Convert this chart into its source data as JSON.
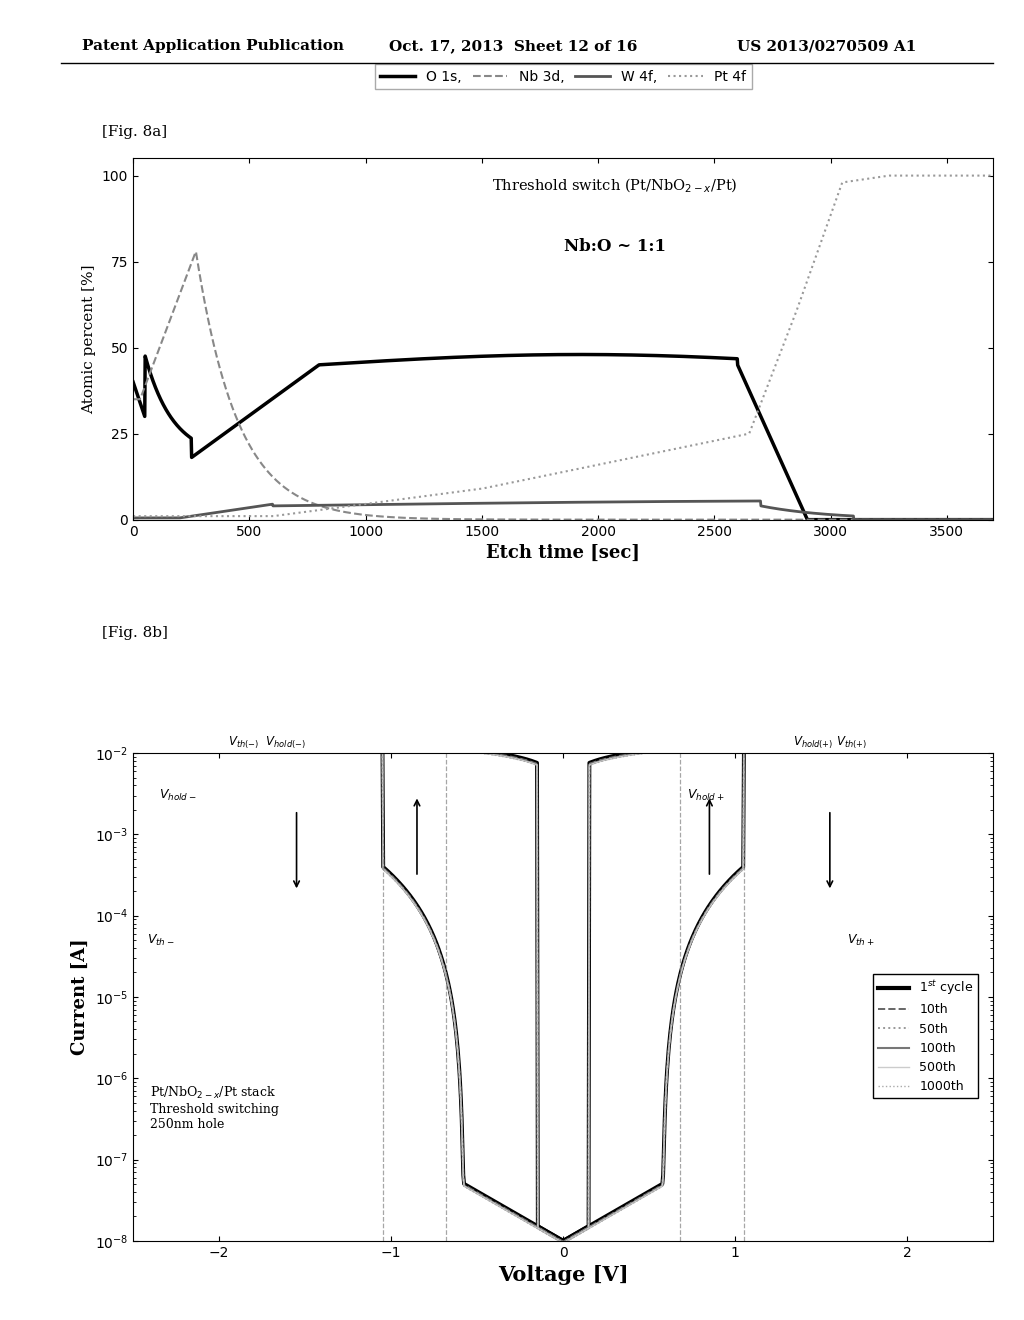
{
  "header_left": "Patent Application Publication",
  "header_mid": "Oct. 17, 2013  Sheet 12 of 16",
  "header_right": "US 2013/0270509 A1",
  "fig_label_a": "[Fig. 8a]",
  "fig_label_b": "[Fig. 8b]",
  "plot_a": {
    "xlabel": "Etch time [sec]",
    "ylabel": "Atomic percent [%]",
    "xlim": [
      0,
      3700
    ],
    "ylim": [
      0,
      105
    ],
    "yticks": [
      0,
      25,
      50,
      75,
      100
    ],
    "xticks": [
      0,
      500,
      1000,
      1500,
      2000,
      2500,
      3000,
      3500
    ]
  },
  "plot_b": {
    "xlabel": "Voltage [V]",
    "ylabel": "Current [A]",
    "xlim": [
      -2.5,
      2.5
    ],
    "xticks": [
      -2,
      -1,
      0,
      1,
      2
    ]
  },
  "background_color": "#ffffff"
}
